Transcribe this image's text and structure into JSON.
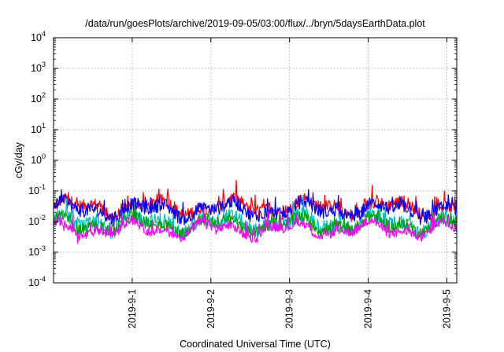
{
  "chart_data": {
    "type": "line",
    "title": "/data/run/goesPlots/archive/2019-09-05/03:00/flux/../bryn/5daysEarthData.plot",
    "xlabel": "Coordinated Universal Time (UTC)",
    "ylabel": "cGy/day",
    "y_scale": "log",
    "ylim": [
      0.0001,
      10000
    ],
    "xlim": [
      "2019-08-31 00:00",
      "2019-09-05 03:00"
    ],
    "grid": true,
    "x_ticks": [
      "2019-9-1",
      "2019-9-2",
      "2019-9-3",
      "2019-9-4",
      "2019-9-5"
    ],
    "y_ticks": [
      {
        "base": "10",
        "exp": "-4"
      },
      {
        "base": "10",
        "exp": "-3"
      },
      {
        "base": "10",
        "exp": "-2"
      },
      {
        "base": "10",
        "exp": "-1"
      },
      {
        "base": "10",
        "exp": "0"
      },
      {
        "base": "10",
        "exp": "1"
      },
      {
        "base": "10",
        "exp": "2"
      },
      {
        "base": "10",
        "exp": "3"
      },
      {
        "base": "10",
        "exp": "4"
      }
    ],
    "series": [
      {
        "color": "#ff0000",
        "center": 0.03,
        "spread": 0.2,
        "spike": 0.65
      },
      {
        "color": "#0000ff",
        "center": 0.024,
        "spread": 0.22,
        "spike": 0.55
      },
      {
        "color": "#00c0c0",
        "center": 0.009,
        "spread": 0.25,
        "spike": 0.5
      },
      {
        "color": "#00a000",
        "center": 0.008,
        "spread": 0.2,
        "spike": 0.35
      },
      {
        "color": "#ff00ff",
        "center": 0.0055,
        "spread": 0.15,
        "spike": 0.55
      }
    ]
  }
}
